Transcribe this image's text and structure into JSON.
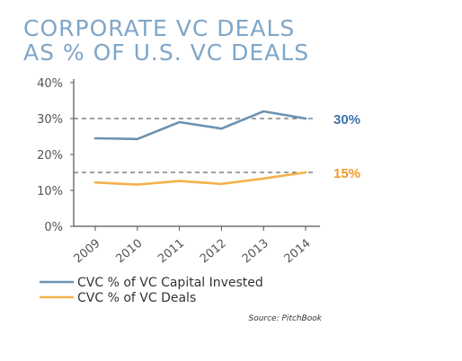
{
  "title_lines": [
    "CORPORATE VC DEALS",
    "AS % OF U.S. VC DEALS"
  ],
  "chart_data": {
    "type": "line",
    "title": "CORPORATE VC DEALS AS % OF U.S. VC DEALS",
    "categories": [
      "2009",
      "2010",
      "2011",
      "2012",
      "2013",
      "2014"
    ],
    "series": [
      {
        "name": "CVC % of VC Capital Invested",
        "values": [
          24.5,
          24.3,
          29,
          27.2,
          32,
          30
        ],
        "color": "#6b93b3"
      },
      {
        "name": "CVC % of VC Deals",
        "values": [
          12.2,
          11.6,
          12.6,
          11.8,
          13.3,
          15
        ],
        "color": "#f4b24a"
      }
    ],
    "yticks": [
      "0%",
      "10%",
      "20%",
      "30%",
      "40%"
    ],
    "ylim": [
      0,
      40
    ],
    "reference_lines": [
      {
        "value": 30,
        "label": "30%",
        "color": "#3f74a8"
      },
      {
        "value": 15,
        "label": "15%",
        "color": "#ef9a2c"
      }
    ],
    "grid": false,
    "legend_position": "bottom-left",
    "source": "Source: PitchBook"
  }
}
